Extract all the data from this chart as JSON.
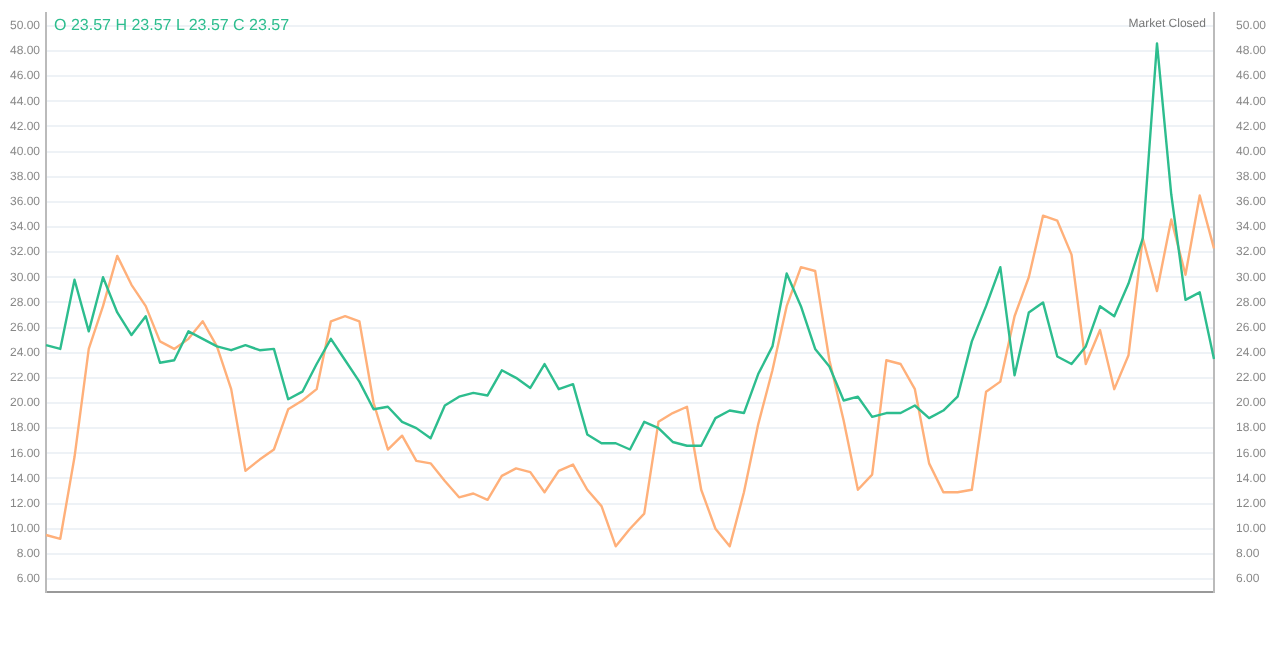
{
  "chart_data": {
    "type": "line",
    "title": "O 23.57 H 23.57 L 23.57 C 23.57",
    "annotations": [
      "Market Closed"
    ],
    "categories": [
      null,
      null,
      null,
      null,
      null,
      null,
      null,
      null,
      null,
      null,
      null,
      null,
      null,
      null,
      null,
      null,
      null,
      null,
      null,
      null,
      null,
      null,
      null,
      null,
      null,
      null,
      null,
      null,
      null,
      null,
      null,
      null,
      null,
      null,
      null,
      null,
      null,
      null,
      null,
      null,
      null,
      null,
      null,
      null,
      null,
      null,
      null,
      null,
      null,
      null,
      null,
      null,
      null,
      null,
      null,
      null,
      null,
      null,
      null,
      null,
      null,
      null,
      null,
      null,
      null,
      null,
      null,
      null,
      null,
      null,
      null,
      null,
      null,
      null,
      null,
      null,
      null,
      null,
      null,
      null,
      null,
      null,
      null
    ],
    "series": [
      {
        "color": "#2dbd8e",
        "values": [
          24.6,
          24.3,
          29.8,
          25.7,
          30.0,
          27.2,
          25.4,
          26.9,
          23.2,
          23.4,
          25.7,
          25.1,
          24.5,
          24.2,
          24.6,
          24.2,
          24.3,
          20.3,
          20.9,
          23.1,
          25.1,
          23.4,
          21.7,
          19.5,
          19.7,
          18.5,
          18.0,
          17.2,
          19.8,
          20.5,
          20.8,
          20.6,
          22.6,
          22.0,
          21.2,
          23.1,
          21.1,
          21.5,
          17.5,
          16.8,
          16.8,
          16.3,
          18.5,
          18.0,
          16.9,
          16.6,
          16.6,
          18.8,
          19.4,
          19.2,
          22.3,
          24.5,
          30.3,
          27.7,
          24.3,
          22.9,
          20.2,
          20.5,
          18.9,
          19.2,
          19.2,
          19.8,
          18.8,
          19.4,
          20.5,
          24.9,
          27.7,
          30.8,
          22.2,
          27.2,
          28.0,
          23.7,
          23.1,
          24.5,
          27.7,
          26.9,
          29.5,
          33.1,
          48.6,
          36.6,
          28.2,
          28.8,
          23.5
        ]
      },
      {
        "color": "#ffb07a",
        "values": [
          9.5,
          9.2,
          15.7,
          24.3,
          27.7,
          31.7,
          29.4,
          27.7,
          24.9,
          24.3,
          25.1,
          26.5,
          24.5,
          21.1,
          14.6,
          15.5,
          16.3,
          19.5,
          20.2,
          21.1,
          26.5,
          26.9,
          26.5,
          20.0,
          16.3,
          17.4,
          15.4,
          15.2,
          13.8,
          12.5,
          12.8,
          12.3,
          14.2,
          14.8,
          14.5,
          12.9,
          14.6,
          15.1,
          13.1,
          11.8,
          8.6,
          10.0,
          11.2,
          18.5,
          19.2,
          19.7,
          13.1,
          10.0,
          8.6,
          12.9,
          18.3,
          22.6,
          27.7,
          30.8,
          30.5,
          23.4,
          18.6,
          13.1,
          14.3,
          23.4,
          23.1,
          21.1,
          15.2,
          12.9,
          12.9,
          13.1,
          20.9,
          21.7,
          26.9,
          30.0,
          34.9,
          34.5,
          31.8,
          23.1,
          25.8,
          21.1,
          23.8,
          33.1,
          28.9,
          34.6,
          30.2,
          36.5,
          32.3
        ]
      }
    ],
    "ylim": [
      5,
      51
    ],
    "yticks": [
      {
        "value": 6,
        "label": "6.00"
      },
      {
        "value": 8,
        "label": "8.00"
      },
      {
        "value": 10,
        "label": "10.00"
      },
      {
        "value": 12,
        "label": "12.00"
      },
      {
        "value": 14,
        "label": "14.00"
      },
      {
        "value": 16,
        "label": "16.00"
      },
      {
        "value": 18,
        "label": "18.00"
      },
      {
        "value": 20,
        "label": "20.00"
      },
      {
        "value": 22,
        "label": "22.00"
      },
      {
        "value": 24,
        "label": "24.00"
      },
      {
        "value": 26,
        "label": "26.00"
      },
      {
        "value": 28,
        "label": "28.00"
      },
      {
        "value": 30,
        "label": "30.00"
      },
      {
        "value": 32,
        "label": "32.00"
      },
      {
        "value": 34,
        "label": "34.00"
      },
      {
        "value": 36,
        "label": "36.00"
      },
      {
        "value": 38,
        "label": "38.00"
      },
      {
        "value": 40,
        "label": "40.00"
      },
      {
        "value": 42,
        "label": "42.00"
      },
      {
        "value": 44,
        "label": "44.00"
      },
      {
        "value": 46,
        "label": "46.00"
      },
      {
        "value": 48,
        "label": "48.00"
      },
      {
        "value": 50,
        "label": "50.00"
      }
    ],
    "y2lim": [
      5,
      51
    ],
    "y2ticks": [
      {
        "value": 6,
        "label": "6.00"
      },
      {
        "value": 8,
        "label": "8.00"
      },
      {
        "value": 10,
        "label": "10.00"
      },
      {
        "value": 12,
        "label": "12.00"
      },
      {
        "value": 14,
        "label": "14.00"
      },
      {
        "value": 16,
        "label": "16.00"
      },
      {
        "value": 18,
        "label": "18.00"
      },
      {
        "value": 20,
        "label": "20.00"
      },
      {
        "value": 22,
        "label": "22.00"
      },
      {
        "value": 24,
        "label": "24.00"
      },
      {
        "value": 26,
        "label": "26.00"
      },
      {
        "value": 28,
        "label": "28.00"
      },
      {
        "value": 30,
        "label": "30.00"
      },
      {
        "value": 32,
        "label": "32.00"
      },
      {
        "value": 34,
        "label": "34.00"
      },
      {
        "value": 36,
        "label": "36.00"
      },
      {
        "value": 38,
        "label": "38.00"
      },
      {
        "value": 40,
        "label": "40.00"
      },
      {
        "value": 42,
        "label": "42.00"
      },
      {
        "value": 44,
        "label": "44.00"
      },
      {
        "value": 46,
        "label": "46.00"
      },
      {
        "value": 48,
        "label": "48.00"
      },
      {
        "value": 50,
        "label": "50.00"
      }
    ],
    "grid": "y",
    "legend": false,
    "marker": "none",
    "line_style": "solid"
  }
}
